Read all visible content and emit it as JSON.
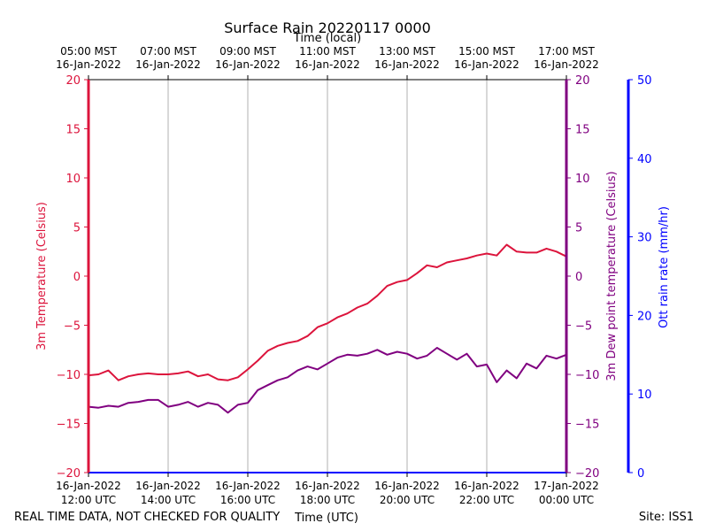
{
  "chart_data": {
    "type": "line",
    "title": "Surface Rain 20220117 0000",
    "top_axis_label": "Time (local)",
    "xlabel": "Time (UTC)",
    "footer_left": "REAL TIME DATA, NOT CHECKED FOR QUALITY",
    "footer_right": "Site: ISS1",
    "x_range_hours_utc": [
      12,
      24
    ],
    "bottom_ticks": [
      {
        "hour": 12,
        "line1": "16-Jan-2022",
        "line2": "12:00 UTC"
      },
      {
        "hour": 14,
        "line1": "16-Jan-2022",
        "line2": "14:00 UTC"
      },
      {
        "hour": 16,
        "line1": "16-Jan-2022",
        "line2": "16:00 UTC"
      },
      {
        "hour": 18,
        "line1": "16-Jan-2022",
        "line2": "18:00 UTC"
      },
      {
        "hour": 20,
        "line1": "16-Jan-2022",
        "line2": "20:00 UTC"
      },
      {
        "hour": 22,
        "line1": "16-Jan-2022",
        "line2": "22:00 UTC"
      },
      {
        "hour": 24,
        "line1": "17-Jan-2022",
        "line2": "00:00 UTC"
      }
    ],
    "top_ticks": [
      {
        "hour": 12,
        "line1": "05:00 MST",
        "line2": "16-Jan-2022"
      },
      {
        "hour": 14,
        "line1": "07:00 MST",
        "line2": "16-Jan-2022"
      },
      {
        "hour": 16,
        "line1": "09:00 MST",
        "line2": "16-Jan-2022"
      },
      {
        "hour": 18,
        "line1": "11:00 MST",
        "line2": "16-Jan-2022"
      },
      {
        "hour": 20,
        "line1": "13:00 MST",
        "line2": "16-Jan-2022"
      },
      {
        "hour": 22,
        "line1": "15:00 MST",
        "line2": "16-Jan-2022"
      },
      {
        "hour": 24,
        "line1": "17:00 MST",
        "line2": "16-Jan-2022"
      }
    ],
    "left_axis": {
      "label": "3m Temperature (Celsius)",
      "ylim": [
        -20,
        20
      ],
      "ticks": [
        -20,
        -15,
        -10,
        -5,
        0,
        5,
        10,
        15,
        20
      ],
      "color": "#dc143c"
    },
    "right_axis_1": {
      "label": "3m Dew point temperature (Celsius)",
      "ylim": [
        -20,
        20
      ],
      "ticks": [
        -20,
        -15,
        -10,
        -5,
        0,
        5,
        10,
        15,
        20
      ],
      "color": "#800080"
    },
    "right_axis_2": {
      "label": "Ott rain rate (mm/hr)",
      "ylim": [
        0,
        50
      ],
      "ticks": [
        0,
        10,
        20,
        30,
        40,
        50
      ],
      "color": "#0000ff"
    },
    "series": [
      {
        "name": "3m Temperature",
        "axis": "left",
        "color": "#dc143c",
        "x": [
          12.0,
          12.25,
          12.5,
          12.75,
          13.0,
          13.25,
          13.5,
          13.75,
          14.0,
          14.25,
          14.5,
          14.75,
          15.0,
          15.25,
          15.5,
          15.75,
          16.0,
          16.25,
          16.5,
          16.75,
          17.0,
          17.25,
          17.5,
          17.75,
          18.0,
          18.25,
          18.5,
          18.75,
          19.0,
          19.25,
          19.5,
          19.75,
          20.0,
          20.25,
          20.5,
          20.75,
          21.0,
          21.25,
          21.5,
          21.75,
          22.0,
          22.25,
          22.5,
          22.75,
          23.0,
          23.25,
          23.5,
          23.75,
          24.0
        ],
        "values": [
          -10.1,
          -10.0,
          -9.6,
          -10.6,
          -10.2,
          -10.0,
          -9.9,
          -10.0,
          -10.0,
          -9.9,
          -9.7,
          -10.2,
          -10.0,
          -10.5,
          -10.6,
          -10.3,
          -9.5,
          -8.6,
          -7.6,
          -7.1,
          -6.8,
          -6.6,
          -6.1,
          -5.2,
          -4.8,
          -4.2,
          -3.8,
          -3.2,
          -2.8,
          -2.0,
          -1.0,
          -0.6,
          -0.4,
          0.3,
          1.1,
          0.9,
          1.4,
          1.6,
          1.8,
          2.1,
          2.3,
          2.1,
          3.2,
          2.5,
          2.4,
          2.4,
          2.8,
          2.5,
          2.0
        ]
      },
      {
        "name": "3m Dew point temperature",
        "axis": "right_1",
        "color": "#800080",
        "x": [
          12.0,
          12.25,
          12.5,
          12.75,
          13.0,
          13.25,
          13.5,
          13.75,
          14.0,
          14.25,
          14.5,
          14.75,
          15.0,
          15.25,
          15.5,
          15.75,
          16.0,
          16.25,
          16.5,
          16.75,
          17.0,
          17.25,
          17.5,
          17.75,
          18.0,
          18.25,
          18.5,
          18.75,
          19.0,
          19.25,
          19.5,
          19.75,
          20.0,
          20.25,
          20.5,
          20.75,
          21.0,
          21.25,
          21.5,
          21.75,
          22.0,
          22.25,
          22.5,
          22.75,
          23.0,
          23.25,
          23.5,
          23.75,
          24.0
        ],
        "values": [
          -13.3,
          -13.4,
          -13.2,
          -13.3,
          -12.9,
          -12.8,
          -12.6,
          -12.6,
          -13.3,
          -13.1,
          -12.8,
          -13.3,
          -12.9,
          -13.1,
          -13.9,
          -13.1,
          -12.9,
          -11.6,
          -11.1,
          -10.6,
          -10.3,
          -9.6,
          -9.2,
          -9.5,
          -8.9,
          -8.3,
          -8.0,
          -8.1,
          -7.9,
          -7.5,
          -8.0,
          -7.7,
          -7.9,
          -8.4,
          -8.1,
          -7.3,
          -7.9,
          -8.5,
          -7.9,
          -9.2,
          -9.0,
          -10.8,
          -9.6,
          -10.4,
          -8.9,
          -9.4,
          -8.1,
          -8.4,
          -8.0
        ]
      }
    ]
  }
}
